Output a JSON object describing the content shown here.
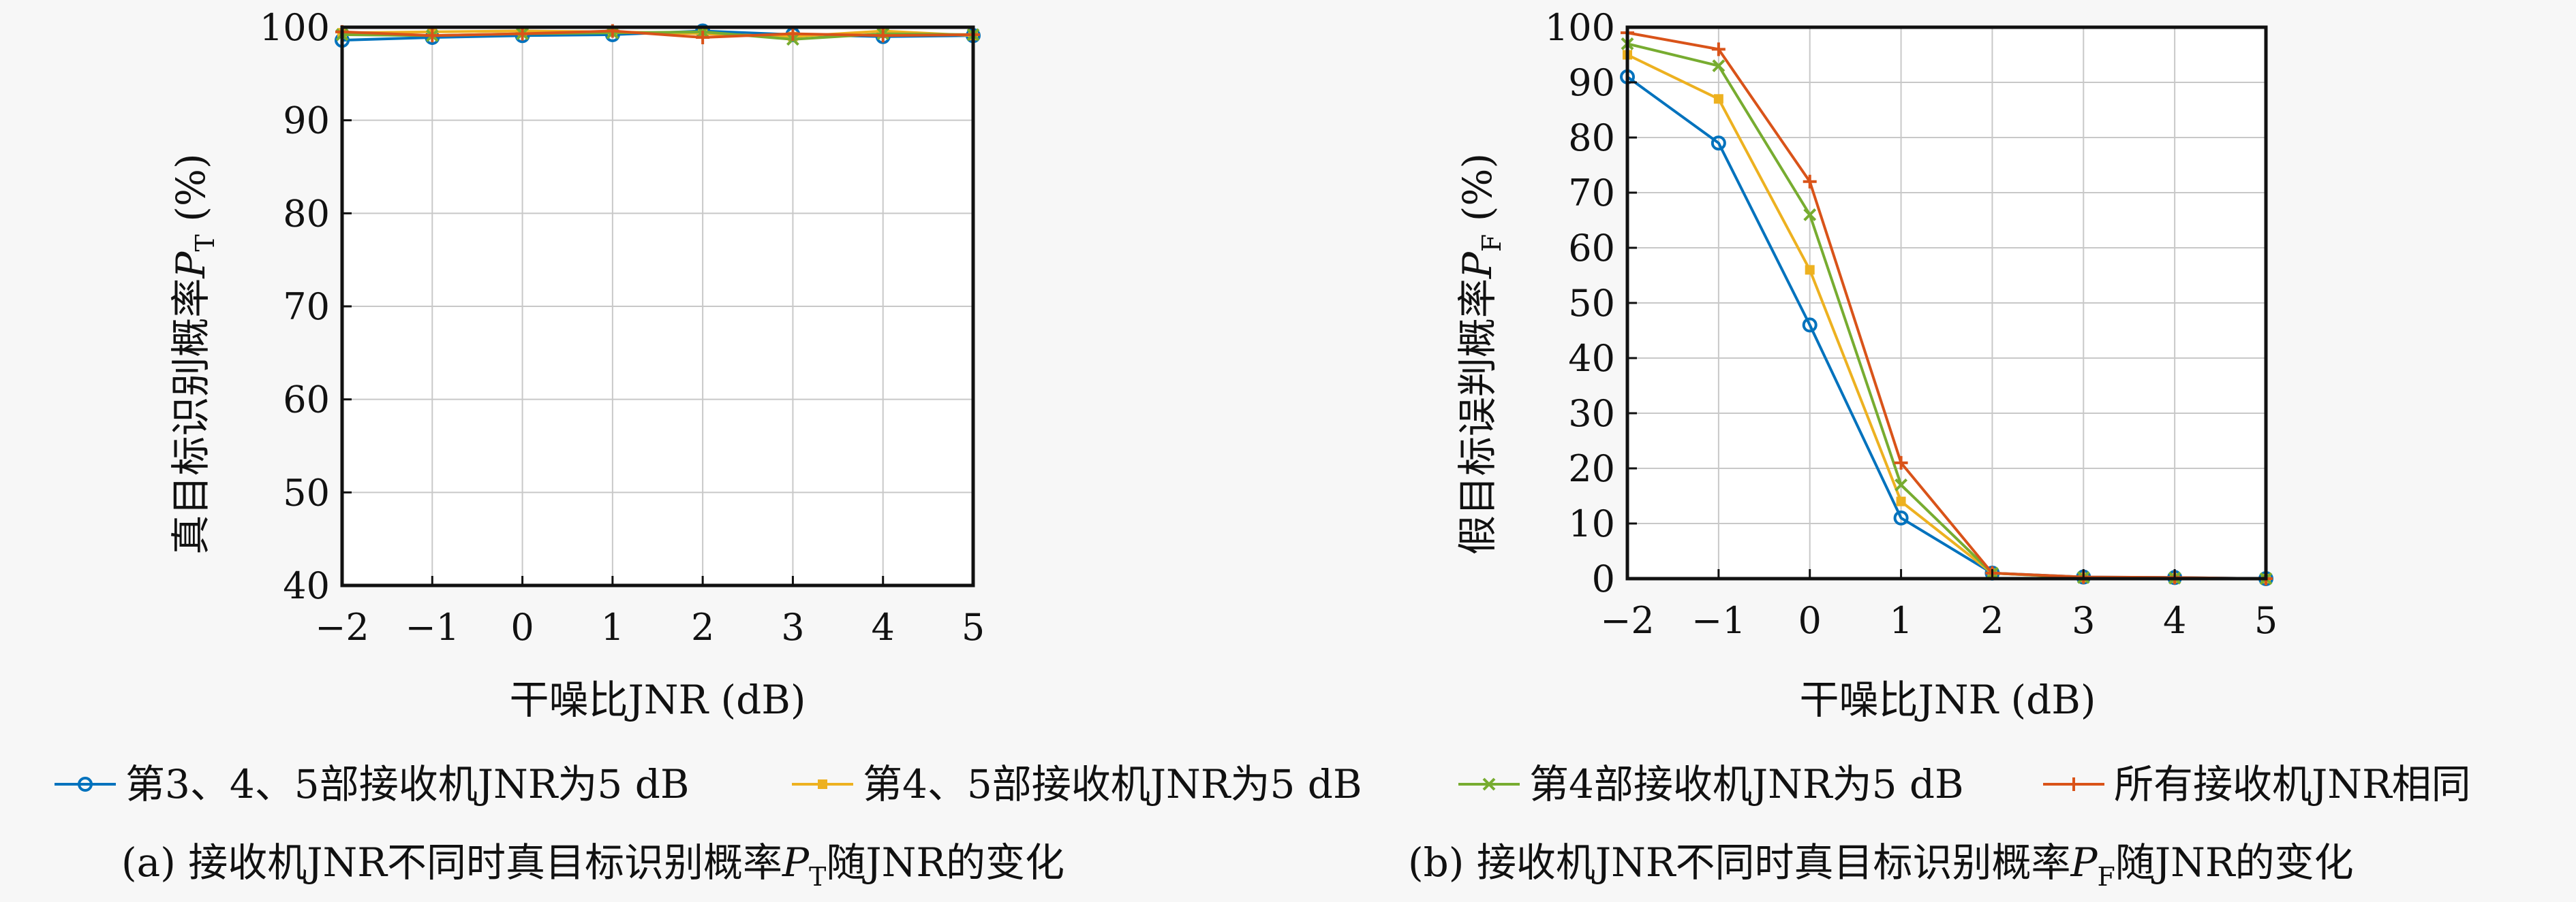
{
  "chart_data": [
    {
      "type": "line",
      "xlabel": "干噪比JNR (dB)",
      "ylabel": "真目标识别概率P_T (%)",
      "xlim": [
        -2,
        5
      ],
      "ylim": [
        40,
        100
      ],
      "grid": true,
      "x": [
        -2,
        -1,
        0,
        1,
        2,
        3,
        4,
        5
      ],
      "x_tick_labels": [
        "−2",
        "−1",
        "0",
        "1",
        "2",
        "3",
        "4",
        "5"
      ],
      "y_ticks": [
        40,
        50,
        60,
        70,
        80,
        90,
        100
      ],
      "series": [
        {
          "name": "第3、4、5部接收机JNR为5 dB",
          "color": "#0072bd",
          "marker": "circle",
          "values": [
            98.6,
            98.9,
            99.1,
            99.2,
            99.6,
            99.2,
            99.0,
            99.1
          ]
        },
        {
          "name": "第4、5部接收机JNR为5 dB",
          "color": "#edb120",
          "marker": "square",
          "values": [
            99.4,
            99.5,
            99.6,
            99.5,
            99.3,
            99.0,
            99.6,
            99.1
          ]
        },
        {
          "name": "第4部接收机JNR为5 dB",
          "color": "#77ac30",
          "marker": "x",
          "values": [
            99.2,
            99.1,
            99.3,
            99.4,
            99.5,
            98.7,
            99.3,
            99.2
          ]
        },
        {
          "name": "所有接收机JNR相同",
          "color": "#d95319",
          "marker": "plus",
          "values": [
            99.5,
            99.1,
            99.3,
            99.6,
            98.9,
            99.3,
            99.1,
            99.2
          ]
        }
      ],
      "caption": "(a) 接收机JNR不同时真目标识别概率P_T随JNR的变化"
    },
    {
      "type": "line",
      "xlabel": "干噪比JNR (dB)",
      "ylabel": "假目标误判概率P_F (%)",
      "xlim": [
        -2,
        5
      ],
      "ylim": [
        0,
        100
      ],
      "grid": true,
      "x": [
        -2,
        -1,
        0,
        1,
        2,
        3,
        4,
        5
      ],
      "x_tick_labels": [
        "−2",
        "−1",
        "0",
        "1",
        "2",
        "3",
        "4",
        "5"
      ],
      "y_ticks": [
        0,
        10,
        20,
        30,
        40,
        50,
        60,
        70,
        80,
        90,
        100
      ],
      "series": [
        {
          "name": "第3、4、5部接收机JNR为5 dB",
          "color": "#0072bd",
          "marker": "circle",
          "values": [
            91,
            79,
            46,
            11,
            1,
            0.3,
            0.2,
            0
          ]
        },
        {
          "name": "第4、5部接收机JNR为5 dB",
          "color": "#edb120",
          "marker": "square",
          "values": [
            95,
            87,
            56,
            14,
            1,
            0.2,
            0.1,
            0
          ]
        },
        {
          "name": "第4部接收机JNR为5 dB",
          "color": "#77ac30",
          "marker": "x",
          "values": [
            97,
            93,
            66,
            17,
            1,
            0.2,
            0.1,
            0
          ]
        },
        {
          "name": "所有接收机JNR相同",
          "color": "#d95319",
          "marker": "plus",
          "values": [
            99,
            96,
            72,
            21,
            1,
            0.3,
            0.2,
            0
          ]
        }
      ],
      "caption": "(b) 接收机JNR不同时真目标识别概率P_F随JNR的变化"
    }
  ],
  "text": {
    "left_xlabel": "干噪比JNR (dB)",
    "right_xlabel": "干噪比JNR (dB)",
    "left_ylabel_main": "真目标识别概率",
    "left_ylabel_sym": "P",
    "left_ylabel_sub": "T",
    "left_ylabel_unit": " (%)",
    "right_ylabel_main": "假目标误判概率",
    "right_ylabel_sym": "P",
    "right_ylabel_sub": "F",
    "right_ylabel_unit": " (%)",
    "legend": [
      "第3、4、5部接收机JNR为5 dB",
      "第4、5部接收机JNR为5 dB",
      "第4部接收机JNR为5 dB",
      "所有接收机JNR相同"
    ],
    "caption_a_pre": "(a) 接收机JNR不同时真目标识别概率",
    "caption_a_sym": "P",
    "caption_a_sub": "T",
    "caption_a_post": "随JNR的变化",
    "caption_b_pre": "(b) 接收机JNR不同时真目标识别概率",
    "caption_b_sym": "P",
    "caption_b_sub": "F",
    "caption_b_post": "随JNR的变化"
  }
}
